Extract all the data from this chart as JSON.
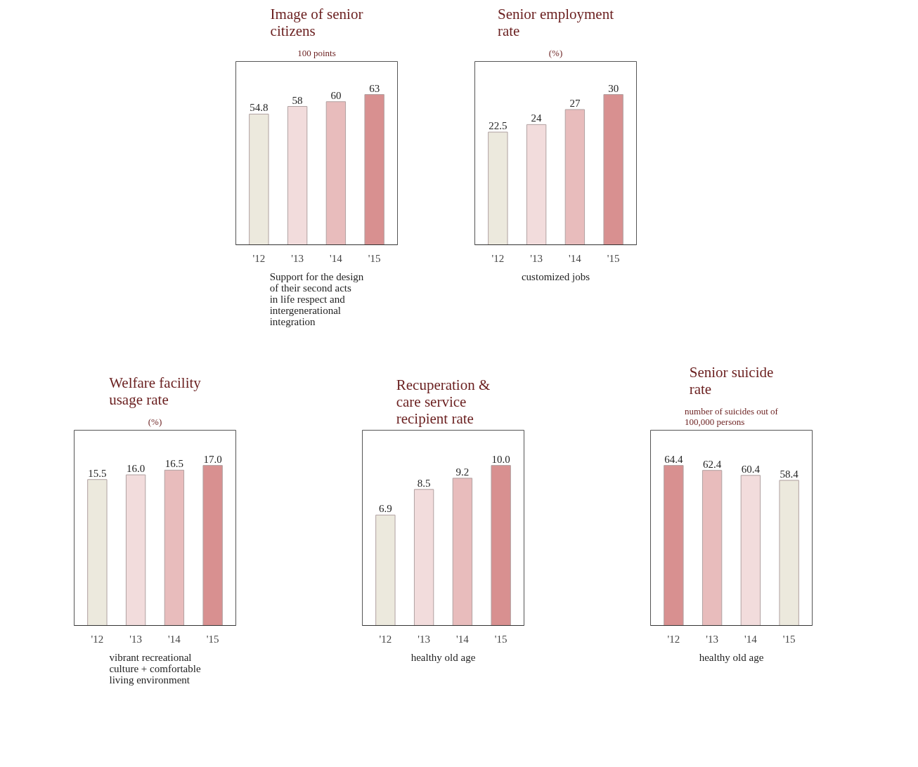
{
  "chart_data": [
    {
      "type": "bar",
      "title": "Image of senior citizens",
      "subtitle": "100 points",
      "categories": [
        "'12",
        "'13",
        "'14",
        "'15"
      ],
      "values": [
        54.8,
        58,
        60,
        63
      ],
      "value_labels": [
        "54.8",
        "58",
        "60",
        "63"
      ],
      "colors": [
        "#ece9dd",
        "#f2dcdc",
        "#e8bcbc",
        "#d89090"
      ],
      "annotations": [
        "Support for the design of their second acts in life respect and intergenerational integration"
      ]
    },
    {
      "type": "bar",
      "title": "Senior employment rate",
      "subtitle": "(%)",
      "categories": [
        "'12",
        "'13",
        "'14",
        "'15"
      ],
      "values": [
        22.5,
        24,
        27,
        30
      ],
      "value_labels": [
        "22.5",
        "24",
        "27",
        "30"
      ],
      "colors": [
        "#ece9dd",
        "#f2dcdc",
        "#e8bcbc",
        "#d89090"
      ],
      "annotations": [
        "customized jobs"
      ]
    },
    {
      "type": "bar",
      "title": "Welfare facility usage rate",
      "subtitle": "(%)",
      "categories": [
        "'12",
        "'13",
        "'14",
        "'15"
      ],
      "values": [
        15.5,
        16.0,
        16.5,
        17.0
      ],
      "value_labels": [
        "15.5",
        "16.0",
        "16.5",
        "17.0"
      ],
      "colors": [
        "#ece9dd",
        "#f2dcdc",
        "#e8bcbc",
        "#d89090"
      ],
      "annotations": [
        "vibrant recreational culture + comfortable living environment"
      ]
    },
    {
      "type": "bar",
      "title": "Recuperation & care service recipient rate",
      "categories": [
        "'12",
        "'13",
        "'14",
        "'15"
      ],
      "values": [
        6.9,
        8.5,
        9.2,
        10.0
      ],
      "value_labels": [
        "6.9",
        "8.5",
        "9.2",
        "10.0"
      ],
      "colors": [
        "#ece9dd",
        "#f2dcdc",
        "#e8bcbc",
        "#d89090"
      ],
      "annotations": [
        "healthy old age"
      ]
    },
    {
      "type": "bar",
      "title": "Senior suicide rate",
      "subtitle": "number of suicides out of 100,000 persons",
      "categories": [
        "'12",
        "'13",
        "'14",
        "'15"
      ],
      "values": [
        64.4,
        62.4,
        60.4,
        58.4
      ],
      "value_labels": [
        "64.4",
        "62.4",
        "60.4",
        "58.4"
      ],
      "colors": [
        "#d89090",
        "#e8bcbc",
        "#f2dcdc",
        "#ece9dd"
      ],
      "annotations": [
        "healthy old age"
      ]
    }
  ]
}
